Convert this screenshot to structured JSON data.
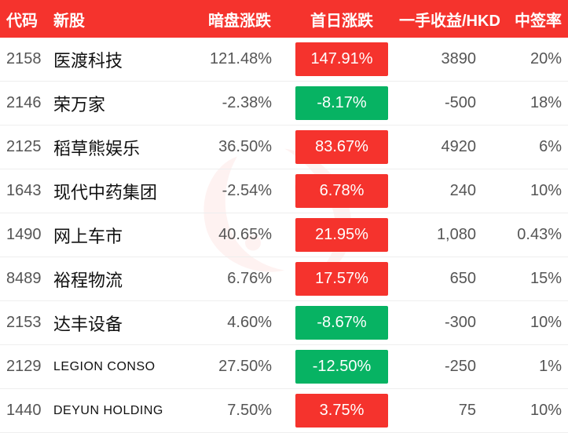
{
  "colors": {
    "header_bg": "#f5332d",
    "up": "#f5332d",
    "down": "#07b363",
    "watermark": "#f5332d"
  },
  "columns": {
    "code": "代码",
    "name": "新股",
    "grey": "暗盘涨跌",
    "first": "首日涨跌",
    "profit": "一手收益/HKD",
    "rate": "中签率"
  },
  "rows": [
    {
      "code": "2158",
      "name": "医渡科技",
      "small": false,
      "grey": "121.48%",
      "first": "147.91%",
      "first_dir": "up",
      "profit": "3890",
      "rate": "20%"
    },
    {
      "code": "2146",
      "name": "荣万家",
      "small": false,
      "grey": "-2.38%",
      "first": "-8.17%",
      "first_dir": "down",
      "profit": "-500",
      "rate": "18%"
    },
    {
      "code": "2125",
      "name": "稻草熊娱乐",
      "small": false,
      "grey": "36.50%",
      "first": "83.67%",
      "first_dir": "up",
      "profit": "4920",
      "rate": "6%"
    },
    {
      "code": "1643",
      "name": "现代中药集团",
      "small": false,
      "grey": "-2.54%",
      "first": "6.78%",
      "first_dir": "up",
      "profit": "240",
      "rate": "10%"
    },
    {
      "code": "1490",
      "name": "网上车市",
      "small": false,
      "grey": "40.65%",
      "first": "21.95%",
      "first_dir": "up",
      "profit": "1,080",
      "rate": "0.43%"
    },
    {
      "code": "8489",
      "name": "裕程物流",
      "small": false,
      "grey": "6.76%",
      "first": "17.57%",
      "first_dir": "up",
      "profit": "650",
      "rate": "15%"
    },
    {
      "code": "2153",
      "name": "达丰设备",
      "small": false,
      "grey": "4.60%",
      "first": "-8.67%",
      "first_dir": "down",
      "profit": "-300",
      "rate": "10%"
    },
    {
      "code": "2129",
      "name": "LEGION CONSO",
      "small": true,
      "grey": "27.50%",
      "first": "-12.50%",
      "first_dir": "down",
      "profit": "-250",
      "rate": "1%"
    },
    {
      "code": "1440",
      "name": "DEYUN HOLDING",
      "small": true,
      "grey": "7.50%",
      "first": "3.75%",
      "first_dir": "up",
      "profit": "75",
      "rate": "10%"
    }
  ]
}
